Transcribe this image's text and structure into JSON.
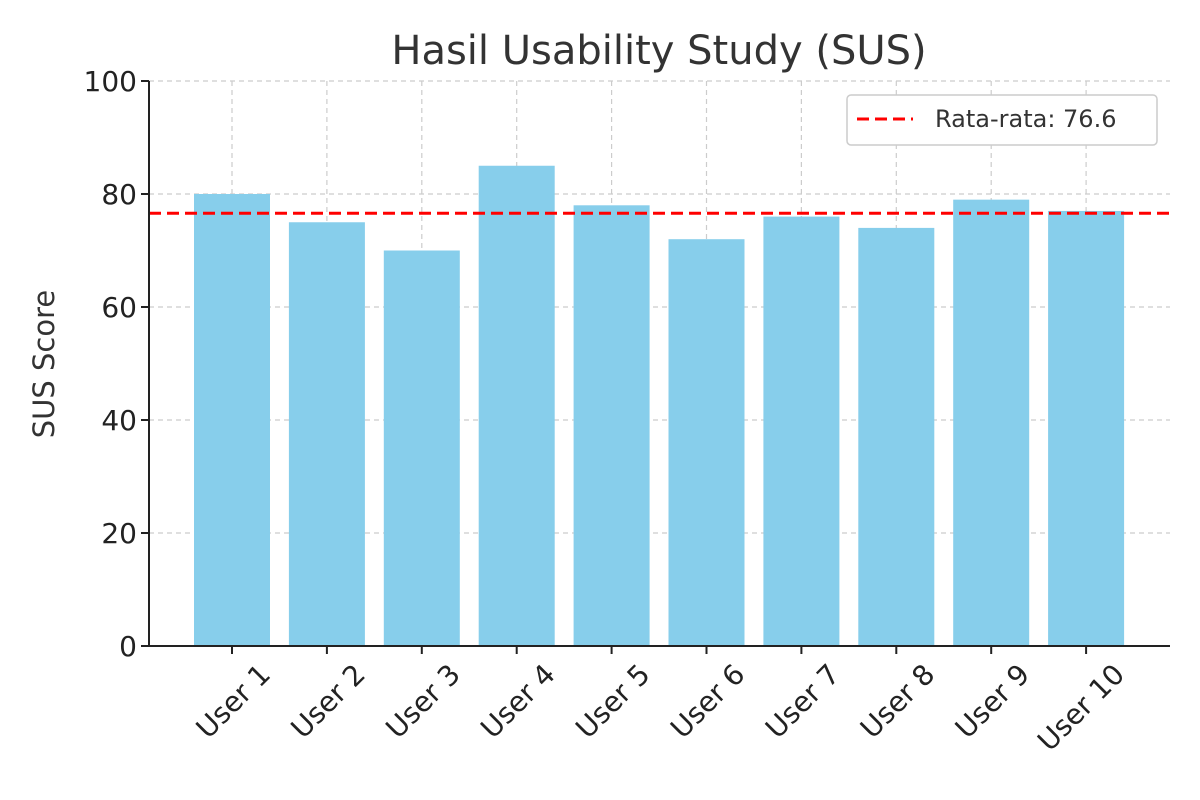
{
  "chart_data": {
    "type": "bar",
    "title": "Hasil Usability Study (SUS)",
    "xlabel": "",
    "ylabel": "SUS Score",
    "categories": [
      "User 1",
      "User 2",
      "User 3",
      "User 4",
      "User 5",
      "User 6",
      "User 7",
      "User 8",
      "User 9",
      "User 10"
    ],
    "values": [
      80,
      75,
      70,
      85,
      78,
      72,
      76,
      74,
      79,
      77
    ],
    "ylim": [
      0,
      100
    ],
    "yticks": [
      0,
      20,
      40,
      60,
      80,
      100
    ],
    "grid": true,
    "bar_color": "#87CEEB",
    "average": {
      "value": 76.6,
      "label": "Rata-rata: 76.6",
      "color": "#FF0000",
      "style": "dashed"
    },
    "legend_position": "top-right"
  }
}
